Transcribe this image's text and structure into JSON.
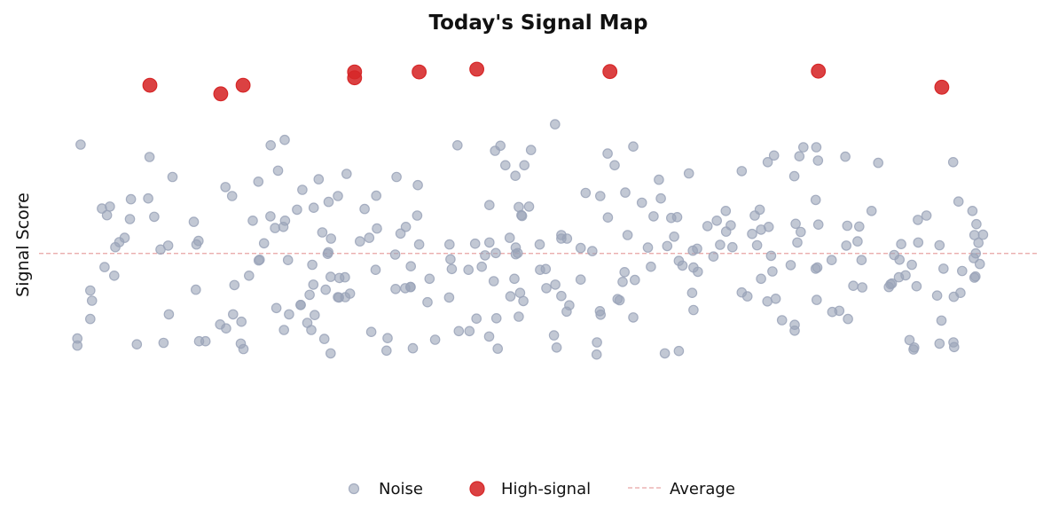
{
  "chart_data": {
    "type": "scatter",
    "title": "Today's Signal Map",
    "xlabel": "",
    "ylabel": "Signal Score",
    "xlim": [
      0,
      300
    ],
    "ylim": [
      0,
      100
    ],
    "grid": false,
    "legend_position": "bottom-center",
    "average": 48.7,
    "colors": {
      "noise": "#9aa3b8",
      "high_signal": "#d62728",
      "average": "#e8a3a3"
    },
    "legend": [
      {
        "label": "Noise",
        "marker": "circle",
        "color": "#9aa3b8"
      },
      {
        "label": "High-signal",
        "marker": "circle",
        "color": "#d62728"
      },
      {
        "label": "Average",
        "marker": "dashed-line",
        "color": "#e8a3a3"
      }
    ],
    "series": [
      {
        "name": "Noise",
        "points": [
          [
            12.5,
            76.6
          ],
          [
            155.0,
            81.8
          ],
          [
            21.3,
            60.7
          ],
          [
            58.0,
            63.4
          ],
          [
            89.8,
            63.4
          ],
          [
            33.2,
            73.4
          ],
          [
            156.9,
            53.4
          ],
          [
            233.8,
            45.1
          ],
          [
            73.9,
            57.1
          ],
          [
            233.6,
            36.8
          ],
          [
            37.4,
            25.8
          ],
          [
            47.3,
            51.0
          ],
          [
            110.0,
            39.8
          ],
          [
            19.7,
            45.2
          ],
          [
            71.8,
            69.9
          ],
          [
            92.4,
            69.1
          ],
          [
            73.8,
            77.8
          ],
          [
            216.9,
            54.8
          ],
          [
            226.9,
            68.5
          ],
          [
            238.3,
            33.7
          ],
          [
            234.1,
            56.1
          ],
          [
            125.7,
            76.4
          ],
          [
            137.0,
            75.0
          ],
          [
            108.6,
            53.8
          ],
          [
            113.8,
            66.2
          ],
          [
            280.4,
            59.6
          ],
          [
            111.6,
            40.1
          ],
          [
            147.8,
            75.2
          ],
          [
            242.8,
            55.8
          ],
          [
            227.3,
            56.3
          ],
          [
            73.4,
            55.5
          ],
          [
            138.6,
            76.3
          ],
          [
            87.7,
            52.5
          ],
          [
            56.0,
            65.7
          ],
          [
            170.9,
            57.9
          ],
          [
            193.3,
            45.6
          ],
          [
            145.8,
            71.3
          ],
          [
            195.2,
            69.2
          ],
          [
            258.5,
            47.1
          ],
          [
            242.2,
            73.5
          ],
          [
            96.4,
            51.8
          ],
          [
            133.0,
            45.3
          ],
          [
            87.0,
            61.9
          ],
          [
            170.8,
            74.3
          ],
          [
            175.9,
            43.9
          ],
          [
            262.2,
            45.8
          ],
          [
            196.4,
            49.4
          ],
          [
            152.2,
            44.7
          ],
          [
            150.5,
            44.5
          ],
          [
            225.8,
            45.7
          ],
          [
            69.6,
            76.4
          ],
          [
            80.6,
            30.9
          ],
          [
            90.1,
            37.4
          ],
          [
            144.5,
            38.6
          ],
          [
            219.2,
            55.5
          ],
          [
            178.5,
            76.1
          ],
          [
            87.6,
            42.7
          ],
          [
            219.9,
            48.1
          ],
          [
            82.5,
            60.4
          ],
          [
            184.6,
            58.2
          ],
          [
            245.9,
            51.8
          ],
          [
            22.6,
            43.0
          ],
          [
            34.6,
            58.1
          ],
          [
            18.9,
            60.2
          ],
          [
            58.3,
            33.1
          ],
          [
            36.5,
            49.7
          ],
          [
            32.8,
            62.8
          ],
          [
            58.7,
            40.6
          ],
          [
            87.6,
            23.1
          ],
          [
            67.6,
            51.3
          ],
          [
            101.1,
            44.5
          ],
          [
            247.1,
            47.0
          ],
          [
            189.9,
            57.8
          ],
          [
            110.2,
            55.5
          ],
          [
            243.0,
            31.9
          ],
          [
            281.6,
            56.2
          ],
          [
            144.1,
            32.5
          ],
          [
            92.0,
            37.5
          ],
          [
            188.0,
            23.1
          ],
          [
            173.8,
            37.0
          ],
          [
            117.3,
            42.2
          ],
          [
            207.8,
            55.9
          ],
          [
            143.1,
            68.6
          ],
          [
            40.1,
            68.3
          ],
          [
            84.0,
            67.7
          ],
          [
            79.1,
            65.0
          ],
          [
            78.6,
            35.5
          ],
          [
            81.8,
            29.1
          ],
          [
            64.2,
            57.1
          ],
          [
            131.4,
            32.0
          ],
          [
            274.7,
            25.9
          ],
          [
            270.5,
            25.6
          ],
          [
            227.0,
            28.9
          ],
          [
            29.4,
            25.4
          ],
          [
            255.3,
            40.1
          ],
          [
            22.9,
            50.3
          ],
          [
            227.0,
            30.4
          ],
          [
            218.8,
            36.4
          ],
          [
            104.7,
            27.0
          ],
          [
            227.8,
            51.5
          ],
          [
            124.0,
            44.7
          ],
          [
            256.9,
            48.3
          ],
          [
            150.4,
            51.0
          ],
          [
            156.9,
            52.5
          ],
          [
            129.3,
            28.8
          ],
          [
            269.8,
            37.9
          ],
          [
            221.3,
            37.1
          ],
          [
            137.2,
            48.8
          ],
          [
            107.4,
            68.3
          ],
          [
            211.1,
            69.8
          ],
          [
            280.8,
            47.5
          ],
          [
            82.1,
            45.8
          ],
          [
            283.6,
            53.5
          ],
          [
            186.2,
            67.6
          ],
          [
            86.1,
            39.4
          ],
          [
            75.1,
            33.1
          ],
          [
            242.5,
            50.7
          ],
          [
            196.6,
            45.1
          ],
          [
            89.8,
            37.5
          ],
          [
            123.2,
            37.4
          ],
          [
            234.0,
            72.5
          ],
          [
            282.2,
            51.4
          ],
          [
            107.1,
            39.6
          ],
          [
            152.4,
            39.8
          ],
          [
            81.3,
            38.1
          ],
          [
            56.2,
            29.5
          ],
          [
            47.9,
            51.9
          ],
          [
            191.7,
            58.0
          ],
          [
            206.4,
            54.3
          ],
          [
            65.9,
            67.1
          ],
          [
            82.8,
            32.9
          ],
          [
            137.8,
            24.3
          ],
          [
            215.7,
            50.8
          ],
          [
            20.4,
            58.5
          ],
          [
            238.1,
            47.0
          ],
          [
            202.6,
            47.9
          ],
          [
            266.6,
            58.4
          ],
          [
            47.1,
            39.4
          ],
          [
            112.3,
            24.4
          ],
          [
            85.7,
            26.8
          ],
          [
            175.3,
            41.4
          ],
          [
            144.9,
            58.5
          ],
          [
            281.4,
            48.7
          ],
          [
            143.2,
            50.2
          ],
          [
            141.4,
            52.7
          ],
          [
            70.9,
            55.2
          ],
          [
            104.4,
            23.8
          ],
          [
            276.8,
            38.6
          ],
          [
            223.2,
            31.6
          ],
          [
            270.5,
            50.8
          ],
          [
            24.1,
            51.6
          ],
          [
            15.4,
            39.2
          ],
          [
            135.2,
            27.4
          ],
          [
            192.2,
            46.8
          ],
          [
            144.1,
            60.6
          ],
          [
            281.3,
            42.8
          ],
          [
            85.1,
            54.1
          ],
          [
            99.8,
            28.6
          ],
          [
            172.9,
            71.3
          ],
          [
            282.6,
            46.0
          ],
          [
            113.6,
            58.4
          ],
          [
            168.6,
            63.4
          ],
          [
            197.9,
            44.0
          ],
          [
            260.3,
            43.1
          ],
          [
            215.0,
            58.4
          ],
          [
            274.9,
            24.7
          ],
          [
            271.1,
            31.5
          ],
          [
            162.7,
            42.0
          ],
          [
            167.6,
            25.9
          ],
          [
            39.0,
            33.1
          ],
          [
            203.6,
            57.1
          ],
          [
            11.5,
            26.9
          ],
          [
            244.6,
            40.4
          ],
          [
            69.5,
            58.2
          ],
          [
            206.3,
            59.6
          ],
          [
            101.5,
            55.1
          ],
          [
            196.2,
            38.6
          ],
          [
            73.6,
            29.1
          ],
          [
            197.7,
            49.9
          ],
          [
            71.3,
            34.7
          ],
          [
            258.3,
            42.6
          ],
          [
            181.1,
            61.7
          ],
          [
            196.6,
            34.2
          ],
          [
            82.4,
            40.7
          ],
          [
            143.2,
            48.5
          ],
          [
            11.5,
            25.1
          ],
          [
            140.1,
            71.3
          ],
          [
            156.9,
            37.8
          ],
          [
            164.2,
            64.2
          ],
          [
            66.0,
            46.9
          ],
          [
            274.8,
            37.6
          ],
          [
            276.2,
            62.0
          ],
          [
            281.0,
            53.4
          ],
          [
            233.3,
            44.8
          ],
          [
            240.4,
            34.0
          ],
          [
            126.1,
            28.8
          ],
          [
            15.4,
            31.9
          ],
          [
            86.9,
            49.0
          ],
          [
            27.3,
            57.5
          ],
          [
            46.5,
            56.8
          ],
          [
            220.8,
            73.8
          ],
          [
            256.2,
            41.0
          ],
          [
            228.4,
            73.6
          ],
          [
            182.9,
            50.2
          ],
          [
            136.6,
            41.6
          ],
          [
            145.1,
            58.3
          ],
          [
            233.3,
            62.4
          ],
          [
            155.1,
            40.7
          ],
          [
            262.9,
            24.6
          ],
          [
            135.3,
            61.1
          ],
          [
            167.5,
            22.8
          ],
          [
            255.8,
            40.8
          ],
          [
            66.3,
            47.1
          ],
          [
            134.0,
            48.2
          ],
          [
            131.0,
            51.2
          ],
          [
            162.7,
            50.1
          ],
          [
            252.1,
            71.9
          ],
          [
            166.2,
            49.3
          ],
          [
            97.8,
            60.1
          ],
          [
            200.8,
            55.7
          ],
          [
            119.0,
            26.6
          ],
          [
            15.9,
            36.6
          ],
          [
            50.0,
            26.2
          ],
          [
            179.0,
            41.9
          ],
          [
            60.6,
            25.6
          ],
          [
            61.4,
            24.2
          ],
          [
            218.9,
            72.1
          ],
          [
            25.7,
            52.7
          ],
          [
            143.8,
            48.8
          ],
          [
            48.1,
            26.2
          ],
          [
            63.1,
            43.0
          ],
          [
            264.0,
            57.3
          ],
          [
            250.1,
            59.6
          ],
          [
            204.6,
            50.9
          ],
          [
            27.6,
            62.6
          ],
          [
            74.8,
            47.0
          ],
          [
            186.8,
            62.8
          ],
          [
            135.3,
            51.5
          ],
          [
            188.7,
            50.6
          ],
          [
            91.9,
            42.6
          ],
          [
            211.1,
            38.7
          ],
          [
            176.8,
            53.4
          ],
          [
            60.8,
            31.2
          ],
          [
            99.2,
            52.7
          ],
          [
            281.0,
            42.5
          ],
          [
            137.4,
            32.1
          ],
          [
            111.7,
            45.4
          ],
          [
            154.7,
            27.7
          ],
          [
            77.5,
            59.9
          ],
          [
            142.8,
            42.2
          ],
          [
            123.6,
            47.2
          ],
          [
            90.2,
            42.4
          ],
          [
            54.4,
            30.5
          ],
          [
            183.8,
            45.3
          ],
          [
            274.6,
            72.1
          ],
          [
            214.2,
            53.7
          ],
          [
            158.5,
            33.8
          ],
          [
            174.4,
            36.7
          ],
          [
            145.5,
            36.5
          ],
          [
            246.4,
            55.6
          ],
          [
            78.6,
            35.5
          ],
          [
            263.6,
            40.3
          ],
          [
            168.5,
            33.9
          ],
          [
            116.7,
            36.2
          ],
          [
            262.7,
            24.1
          ],
          [
            216.5,
            59.9
          ],
          [
            259.0,
            51.1
          ],
          [
            159.3,
            35.4
          ],
          [
            216.9,
            42.2
          ],
          [
            228.8,
            54.2
          ],
          [
            192.2,
            23.7
          ],
          [
            247.3,
            40.0
          ],
          [
            93.4,
            38.4
          ],
          [
            158.6,
            52.5
          ],
          [
            208.3,
            50.3
          ],
          [
            123.3,
            51.0
          ],
          [
            107.0,
            48.4
          ],
          [
            271.7,
            44.8
          ],
          [
            141.6,
            37.7
          ],
          [
            129.0,
            44.5
          ],
          [
            101.3,
            63.5
          ],
          [
            212.8,
            37.7
          ],
          [
            264.1,
            51.5
          ],
          [
            114.2,
            51.0
          ],
          [
            155.5,
            24.6
          ],
          [
            168.7,
            33.0
          ],
          [
            38.8,
            50.7
          ],
          [
            229.6,
            75.9
          ],
          [
            111.6,
            40.1
          ],
          [
            220.3,
            44.1
          ],
          [
            178.5,
            32.3
          ],
          [
            190.8,
            53.0
          ],
          [
            277.3,
            44.2
          ],
          [
            147.2,
            60.7
          ],
          [
            233.5,
            75.9
          ],
          [
            176.1,
            64.3
          ],
          [
            261.5,
            26.5
          ],
          [
            86.7,
            48.6
          ]
        ]
      },
      {
        "name": "High-signal",
        "points": [
          [
            33.3,
            91.8
          ],
          [
            54.6,
            89.6
          ],
          [
            61.3,
            91.8
          ],
          [
            94.8,
            93.7
          ],
          [
            94.8,
            95.2
          ],
          [
            114.2,
            95.2
          ],
          [
            131.5,
            95.9
          ],
          [
            171.5,
            95.3
          ],
          [
            234.1,
            95.4
          ],
          [
            271.2,
            91.3
          ]
        ]
      }
    ]
  }
}
